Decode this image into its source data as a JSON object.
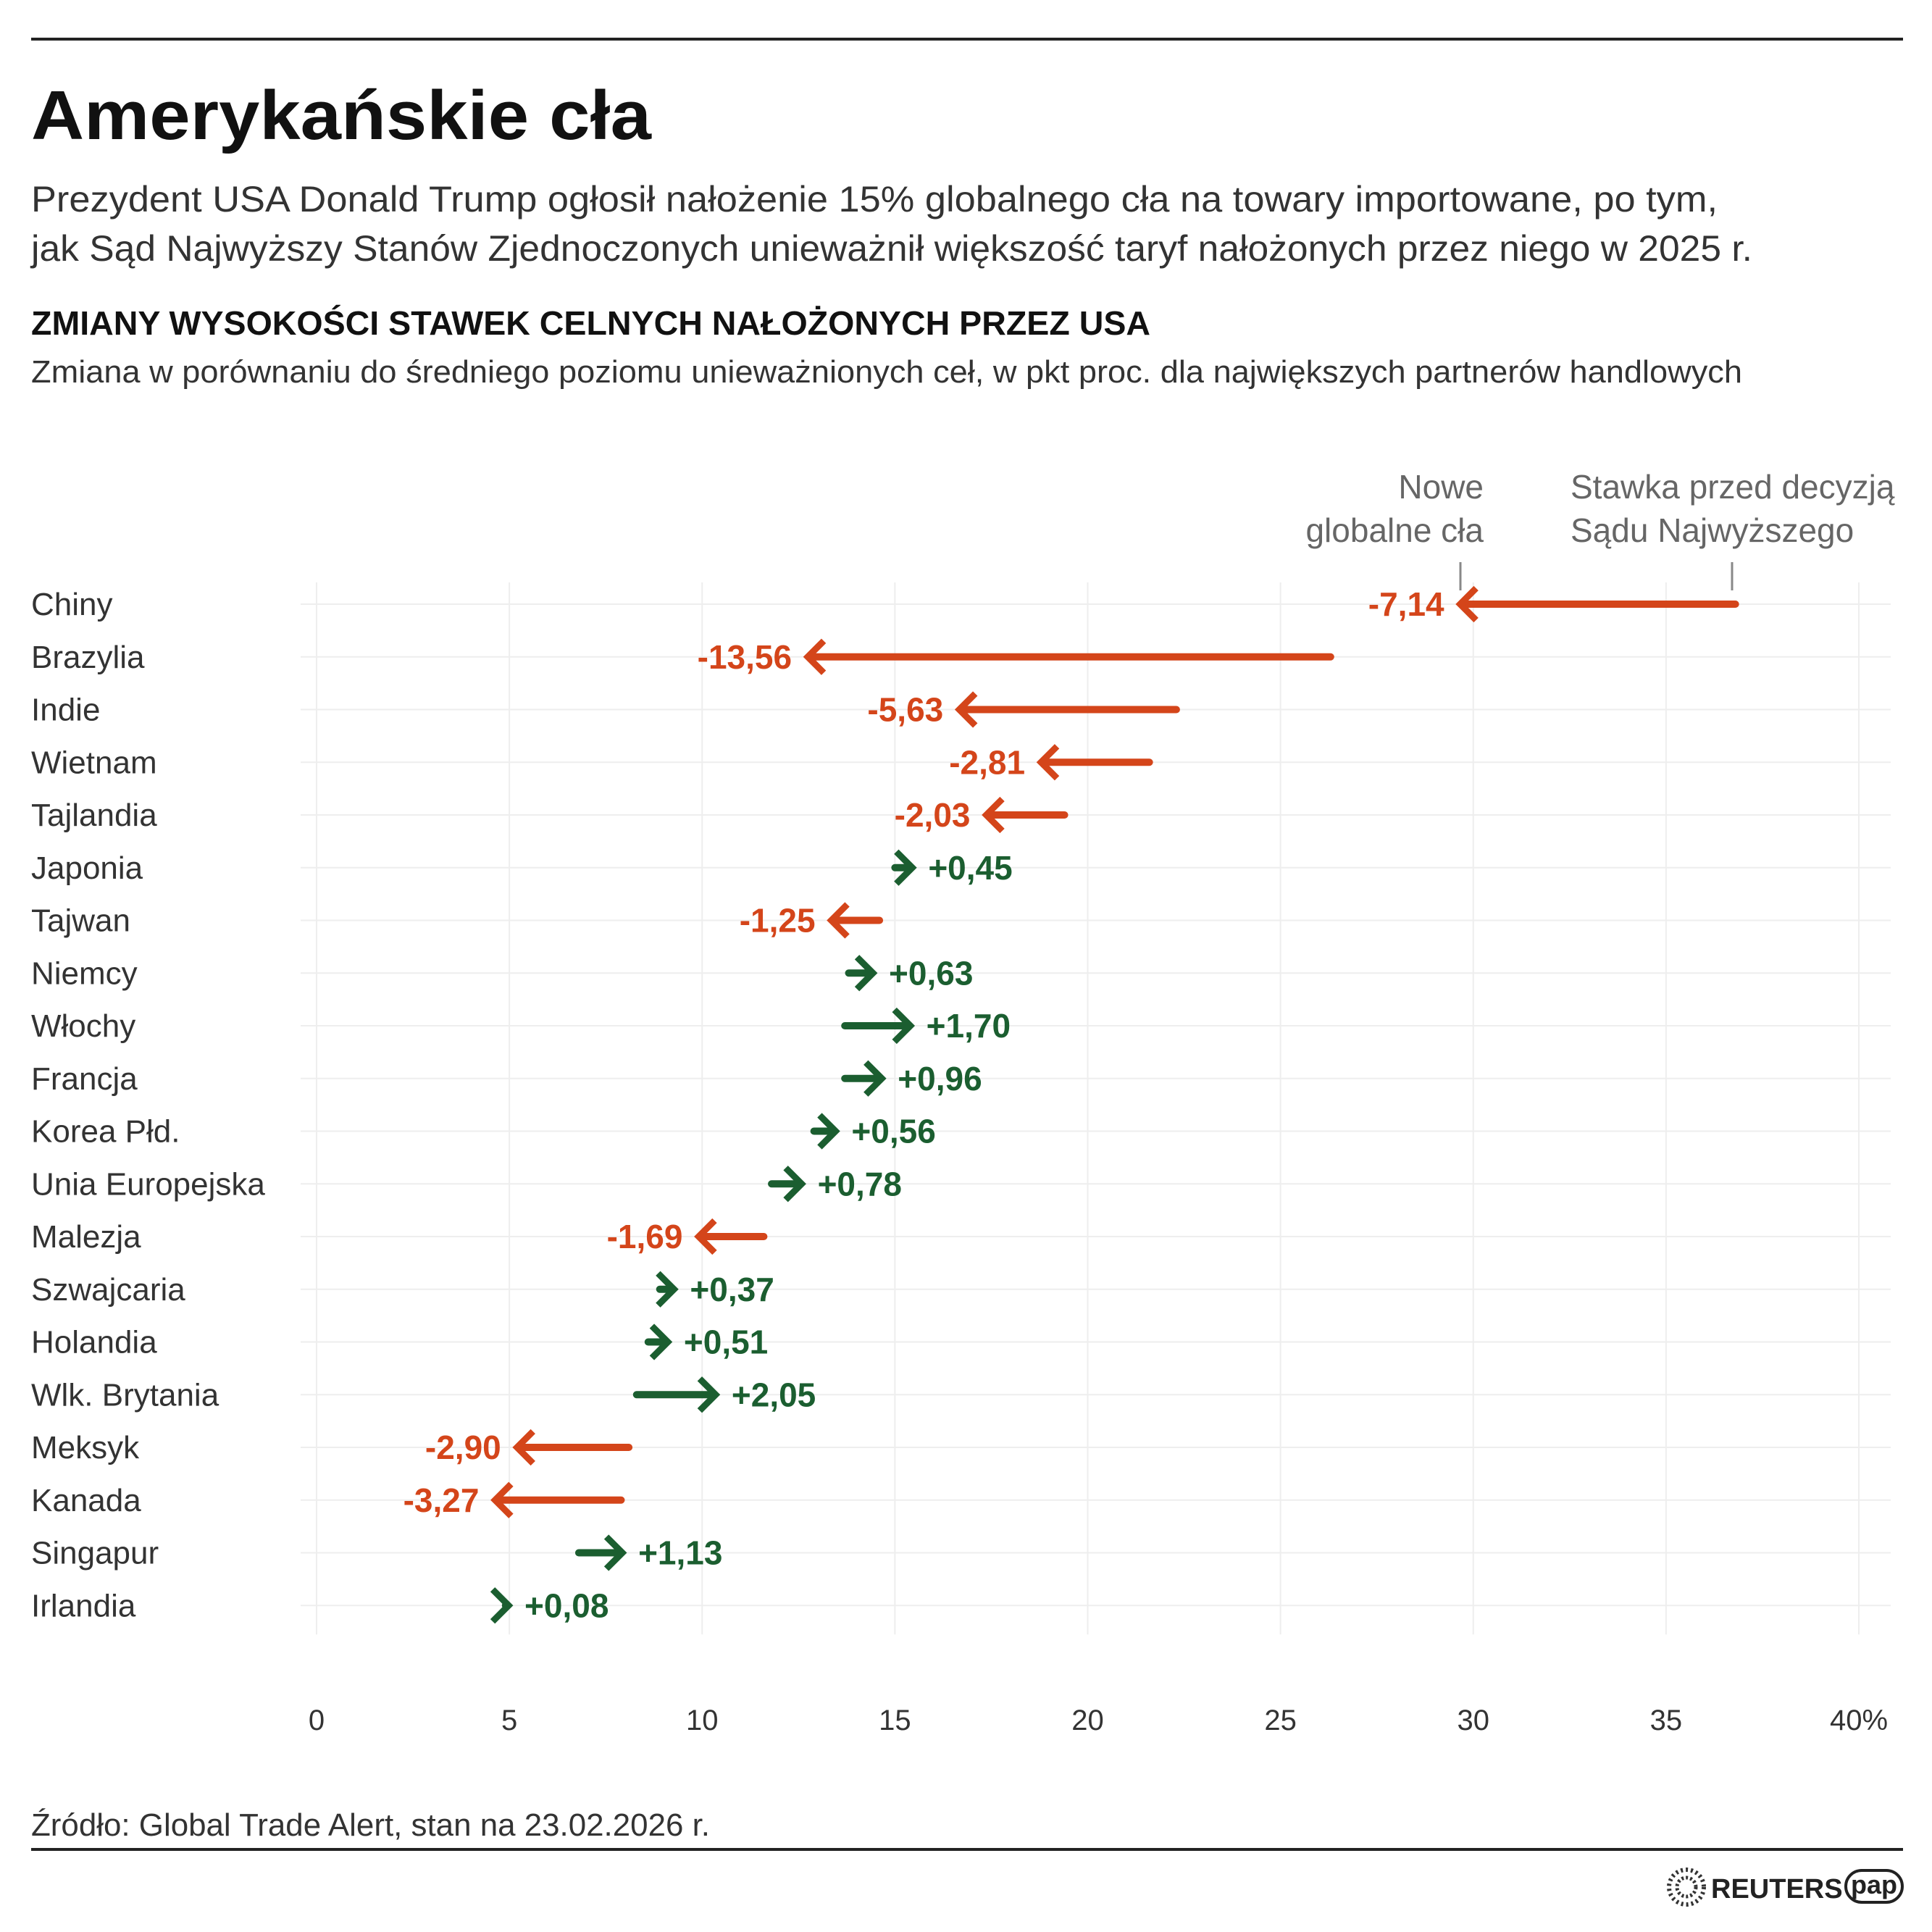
{
  "title": "Amerykańskie cła",
  "subtitle_lines": [
    "Prezydent USA Donald Trump ogłosił nałożenie 15% globalnego cła na towary importowane, po tym,",
    "jak Sąd Najwyższy Stanów Zjednoczonych unieważnił większość taryf nałożonych przez niego w 2025 r."
  ],
  "chart_heading": "ZMIANY WYSOKOŚCI STAWEK CELNYCH NAŁOŻONYCH PRZEZ USA",
  "chart_subheading": "Zmiana w porównaniu do średniego poziomu unieważnionych ceł, w pkt proc. dla największych partnerów handlowych",
  "annotations": {
    "new": [
      "Nowe",
      "globalne cła"
    ],
    "before": [
      "Stawka przed decyzją",
      "Sądu Najwyższego"
    ]
  },
  "source": "Źródło: Global Trade Alert, stan na 23.02.2026 r.",
  "logos": {
    "reuters": "REUTERS",
    "pap": "pap"
  },
  "colors": {
    "decrease": "#d4451a",
    "increase": "#1b5e30",
    "text": "#222222",
    "annotation": "#666666",
    "grid": "#eeeeee"
  },
  "chart_data": {
    "type": "arrow",
    "xlim": [
      0,
      40
    ],
    "x_ticks": [
      "0",
      "5",
      "10",
      "15",
      "20",
      "25",
      "30",
      "35",
      "40%"
    ],
    "x_tick_values": [
      0,
      5,
      10,
      15,
      20,
      25,
      30,
      35,
      40
    ],
    "grid": true,
    "rows": [
      {
        "country": "Chiny",
        "before": 36.8,
        "change": -7.14,
        "label": "-7,14"
      },
      {
        "country": "Brazylia",
        "before": 26.3,
        "change": -13.56,
        "label": "-13,56"
      },
      {
        "country": "Indie",
        "before": 22.3,
        "change": -5.63,
        "label": "-5,63"
      },
      {
        "country": "Wietnam",
        "before": 21.6,
        "change": -2.81,
        "label": "-2,81"
      },
      {
        "country": "Tajlandia",
        "before": 19.4,
        "change": -2.03,
        "label": "-2,03"
      },
      {
        "country": "Japonia",
        "before": 15.0,
        "change": 0.45,
        "label": "+0,45"
      },
      {
        "country": "Tajwan",
        "before": 14.6,
        "change": -1.25,
        "label": "-1,25"
      },
      {
        "country": "Niemcy",
        "before": 13.8,
        "change": 0.63,
        "label": "+0,63"
      },
      {
        "country": "Włochy",
        "before": 13.7,
        "change": 1.7,
        "label": "+1,70"
      },
      {
        "country": "Francja",
        "before": 13.7,
        "change": 0.96,
        "label": "+0,96"
      },
      {
        "country": "Korea Płd.",
        "before": 12.9,
        "change": 0.56,
        "label": "+0,56"
      },
      {
        "country": "Unia Europejska",
        "before": 11.8,
        "change": 0.78,
        "label": "+0,78"
      },
      {
        "country": "Malezja",
        "before": 11.6,
        "change": -1.69,
        "label": "-1,69"
      },
      {
        "country": "Szwajcaria",
        "before": 8.9,
        "change": 0.37,
        "label": "+0,37"
      },
      {
        "country": "Holandia",
        "before": 8.6,
        "change": 0.51,
        "label": "+0,51"
      },
      {
        "country": "Wlk. Brytania",
        "before": 8.3,
        "change": 2.05,
        "label": "+2,05"
      },
      {
        "country": "Meksyk",
        "before": 8.1,
        "change": -2.9,
        "label": "-2,90"
      },
      {
        "country": "Kanada",
        "before": 7.9,
        "change": -3.27,
        "label": "-3,27"
      },
      {
        "country": "Singapur",
        "before": 6.8,
        "change": 1.13,
        "label": "+1,13"
      },
      {
        "country": "Irlandia",
        "before": 4.9,
        "change": 0.08,
        "label": "+0,08"
      }
    ]
  }
}
